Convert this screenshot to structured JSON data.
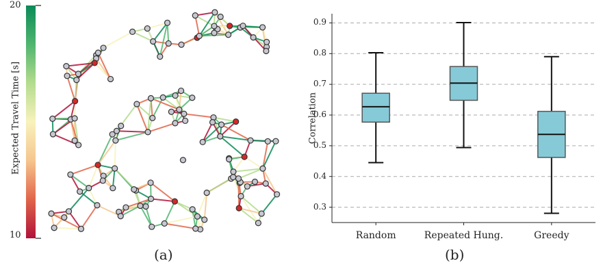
{
  "captions": {
    "left": "(a)",
    "right": "(b)"
  },
  "colorbar": {
    "label": "Expected Travel Time [s]",
    "max_label": "20",
    "min_label": "10",
    "colors": [
      "#b0123a",
      "#e0654a",
      "#f6c58e",
      "#f8f2bc",
      "#b4dc8e",
      "#4fb56f",
      "#0b8a57"
    ]
  },
  "network": {
    "node_fill": "#c8c8d2",
    "node_stroke": "#333333",
    "highlight_fill": "#d62728"
  },
  "chart_data": {
    "type": "box",
    "ylabel": "Correlation",
    "ylim": [
      0.25,
      0.93
    ],
    "yticks": [
      "0.3",
      "0.4",
      "0.5",
      "0.6",
      "0.7",
      "0.8",
      "0.9"
    ],
    "grid": "horizontal dashed",
    "box_color": "#86cad8",
    "categories": [
      "Random",
      "Repeated Hung.",
      "Greedy"
    ],
    "boxes": [
      {
        "whisker_low": 0.445,
        "q1": 0.577,
        "median": 0.627,
        "q3": 0.671,
        "whisker_high": 0.803
      },
      {
        "whisker_low": 0.494,
        "q1": 0.648,
        "median": 0.704,
        "q3": 0.758,
        "whisker_high": 0.901
      },
      {
        "whisker_low": 0.28,
        "q1": 0.462,
        "median": 0.537,
        "q3": 0.612,
        "whisker_high": 0.79
      }
    ]
  }
}
